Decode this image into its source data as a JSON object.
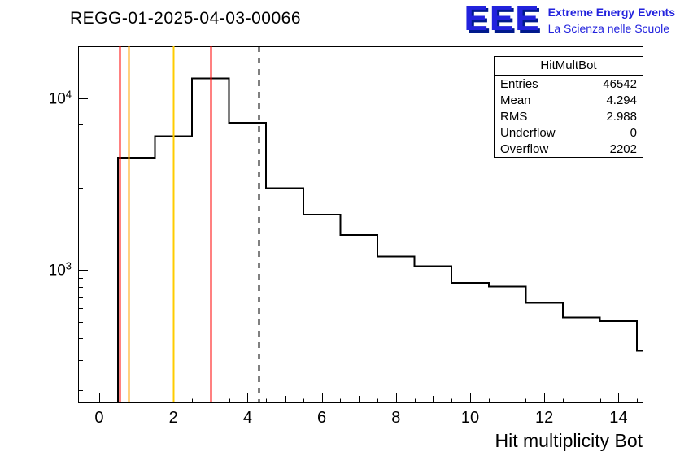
{
  "header": {
    "title": "REGG-01-2025-04-03-00066",
    "logo": {
      "acronym": "EEE",
      "line1": "Extreme Energy Events",
      "line2": "La Scienza nelle Scuole",
      "color": "#2222dd"
    }
  },
  "stats": {
    "title": "HitMultBot",
    "rows": [
      {
        "label": "Entries",
        "value": "46542"
      },
      {
        "label": "Mean",
        "value": "4.294"
      },
      {
        "label": "RMS",
        "value": "2.988"
      },
      {
        "label": "Underflow",
        "value": "0"
      },
      {
        "label": "Overflow",
        "value": "2202"
      }
    ]
  },
  "chart_data": {
    "type": "bar",
    "subtype": "step-histogram",
    "title": "REGG-01-2025-04-03-00066",
    "xlabel": "Hit multiplicity Bot",
    "ylabel": "",
    "yscale": "log",
    "grid": false,
    "legend": false,
    "xlim": [
      -0.57,
      14.65
    ],
    "ylim": [
      170,
      20000
    ],
    "x_ticks": [
      0,
      2,
      4,
      6,
      8,
      10,
      12,
      14
    ],
    "y_tick_exponents": [
      3,
      4
    ],
    "line_color": "#000000",
    "bin_edges": [
      0.5,
      1.5,
      2.5,
      3.5,
      4.5,
      5.5,
      6.5,
      7.5,
      8.5,
      9.5,
      10.5,
      11.5,
      12.5,
      13.5,
      14.5,
      15.5
    ],
    "counts": [
      4500,
      6000,
      13000,
      7200,
      3000,
      2100,
      1600,
      1200,
      1050,
      840,
      800,
      645,
      530,
      505,
      340
    ],
    "vlines": [
      {
        "x": 0.55,
        "color": "#ff0000",
        "style": "solid"
      },
      {
        "x": 0.8,
        "color": "#ffa500",
        "style": "solid"
      },
      {
        "x": 2.0,
        "color": "#ffcc00",
        "style": "solid"
      },
      {
        "x": 3.0,
        "color": "#ff0000",
        "style": "solid"
      },
      {
        "x": 4.294,
        "color": "#000000",
        "style": "dashed"
      }
    ]
  }
}
